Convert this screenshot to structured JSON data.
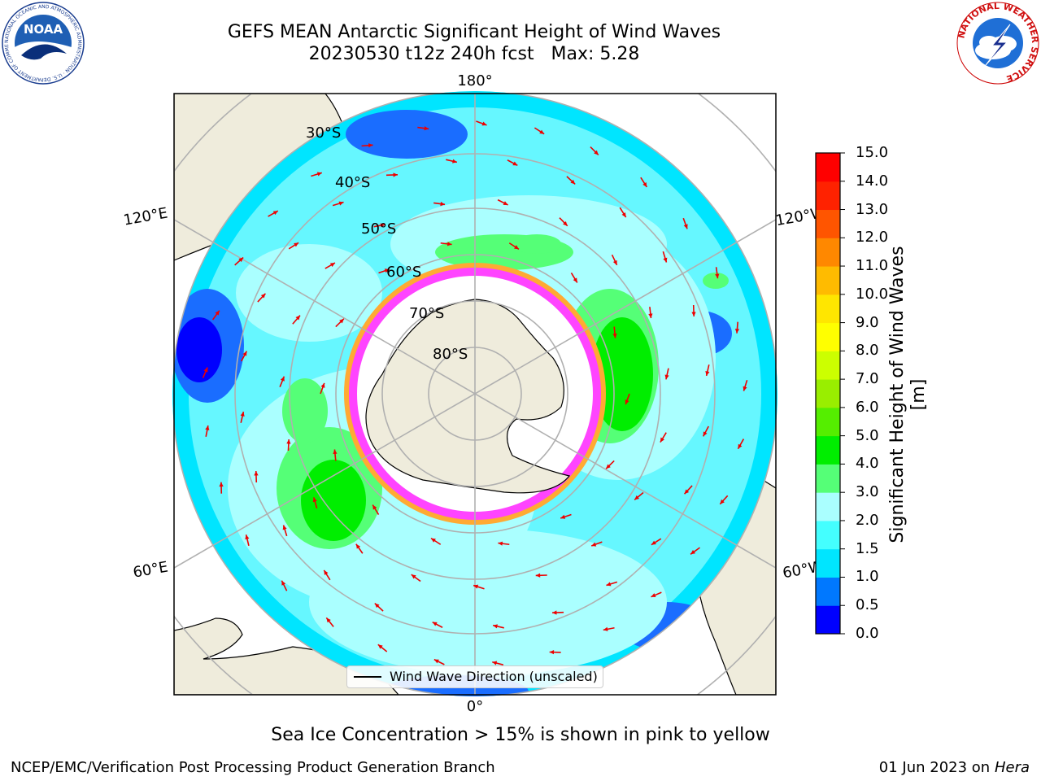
{
  "header": {
    "title_line1": "GEFS MEAN Antarctic Significant Height of Wind Waves",
    "title_line2": "20230530 t12z 240h fcst   Max: 5.28"
  },
  "logos": {
    "left": "NOAA",
    "left_ring": "NATIONAL OCEANIC AND ATMOSPHERIC ADMINISTRATION · U.S. DEPARTMENT OF COMMERCE ·",
    "right_ring": "NATIONAL WEATHER SERVICE"
  },
  "map": {
    "longitude_labels": {
      "top": "180°",
      "bottom": "0°",
      "left_upper": "120°E",
      "left_lower": "60°E",
      "right_upper": "120°W",
      "right_lower": "60°W"
    },
    "latitude_labels": [
      "30°S",
      "40°S",
      "50°S",
      "60°S",
      "70°S",
      "80°S"
    ],
    "legend_label": "Wind Wave Direction (unscaled)",
    "colors": {
      "land": "#efecdc",
      "ice_shelf": "#ffffff",
      "sea_ice_edge": "#ff44ff",
      "grid": "#b0b0b0",
      "arrow": "#ee0000"
    }
  },
  "colorbar": {
    "label": "Significant Height of Wind Waves [m]",
    "ticks": [
      "0.0",
      "0.5",
      "1.0",
      "1.5",
      "2.0",
      "3.0",
      "4.0",
      "5.0",
      "6.0",
      "7.0",
      "8.0",
      "9.0",
      "10.0",
      "11.0",
      "12.0",
      "13.0",
      "14.0",
      "15.0"
    ],
    "colors": [
      "#0000ff",
      "#0078ff",
      "#00e5ff",
      "#44ffff",
      "#aaffff",
      "#55ff77",
      "#00ee00",
      "#55ee00",
      "#99ee00",
      "#ccff00",
      "#ffff00",
      "#ffe600",
      "#ffbb00",
      "#ff8800",
      "#ff5500",
      "#ff2200",
      "#ff0000"
    ]
  },
  "footer": {
    "note": "Sea Ice Concentration > 15% is shown in pink to yellow",
    "left": "NCEP/EMC/Verification Post Processing Product Generation Branch",
    "right_date": "01 Jun 2023 on",
    "right_machine": "Hera"
  }
}
